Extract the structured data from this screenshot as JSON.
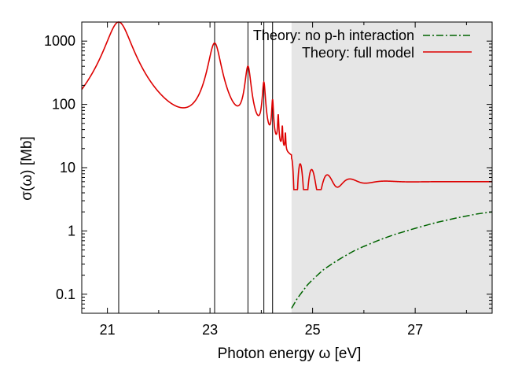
{
  "chart_data": {
    "type": "line",
    "title": "",
    "xlabel": "Photon energy ω [eV]",
    "ylabel": "σ(ω) [Mb]",
    "xlim": [
      20.5,
      28.5
    ],
    "ylim": [
      0.05,
      2000
    ],
    "yscale": "log",
    "grid": false,
    "legend_position": "top-right",
    "x_ticks": [
      21,
      23,
      25,
      27
    ],
    "x_tick_labels": [
      "21",
      "23",
      "25",
      "27"
    ],
    "y_ticks": [
      0.1,
      1,
      10,
      100,
      1000
    ],
    "y_tick_labels": [
      "0.1",
      "1",
      "10",
      "100",
      "1000"
    ],
    "shaded_region": {
      "x_start": 24.59,
      "x_end": 28.5,
      "color": "#e6e6e6"
    },
    "resonance_lines_eV": [
      21.22,
      23.09,
      23.74,
      24.05,
      24.22
    ],
    "series": [
      {
        "name": "Theory: no p-h interaction",
        "color": "#006400",
        "style": "dash-dot",
        "x": [
          24.59,
          24.7,
          24.8,
          24.9,
          25.0,
          25.2,
          25.4,
          25.6,
          25.8,
          26.0,
          26.3,
          26.6,
          27.0,
          27.4,
          27.8,
          28.2,
          28.5
        ],
        "y": [
          0.06,
          0.085,
          0.11,
          0.14,
          0.17,
          0.24,
          0.31,
          0.39,
          0.48,
          0.57,
          0.72,
          0.88,
          1.1,
          1.35,
          1.6,
          1.85,
          2.0
        ]
      },
      {
        "name": "Theory: full model",
        "color": "#dd0000",
        "style": "solid",
        "background": 5.6,
        "resonances": [
          {
            "E": 21.22,
            "peak": 2000,
            "width": 0.22
          },
          {
            "E": 23.09,
            "peak": 900,
            "width": 0.11
          },
          {
            "E": 23.74,
            "peak": 360,
            "width": 0.055
          },
          {
            "E": 24.05,
            "peak": 190,
            "width": 0.03
          },
          {
            "E": 24.22,
            "peak": 90,
            "width": 0.018
          },
          {
            "E": 24.33,
            "peak": 45,
            "width": 0.012
          },
          {
            "E": 24.41,
            "peak": 25,
            "width": 0.009
          },
          {
            "E": 24.47,
            "peak": 17,
            "width": 0.008
          }
        ],
        "oscillation_start": 24.59,
        "plateau_value": 6.0
      }
    ]
  }
}
